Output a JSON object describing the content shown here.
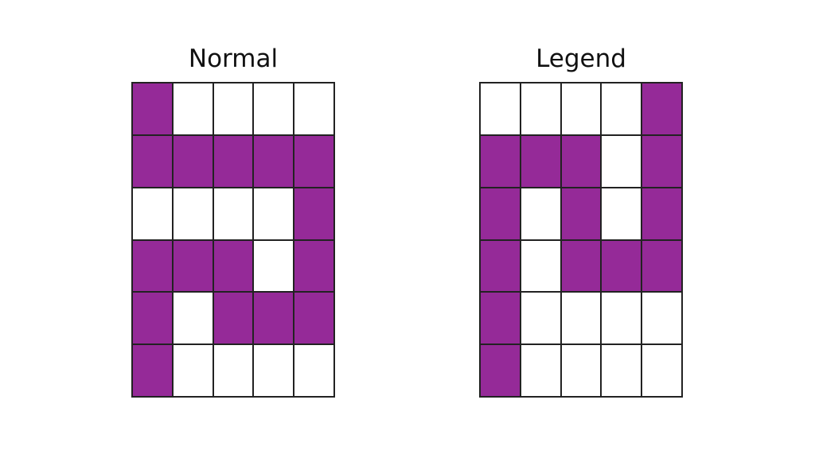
{
  "fill_color": "#952A98",
  "panels": [
    {
      "title": "Normal",
      "cells": [
        [
          1,
          0,
          0,
          0,
          0
        ],
        [
          1,
          1,
          1,
          1,
          1
        ],
        [
          0,
          0,
          0,
          0,
          1
        ],
        [
          1,
          1,
          1,
          0,
          1
        ],
        [
          1,
          0,
          1,
          1,
          1
        ],
        [
          1,
          0,
          0,
          0,
          0
        ]
      ]
    },
    {
      "title": "Legend",
      "cells": [
        [
          0,
          0,
          0,
          0,
          1
        ],
        [
          1,
          1,
          1,
          0,
          1
        ],
        [
          1,
          0,
          1,
          0,
          1
        ],
        [
          1,
          0,
          1,
          1,
          1
        ],
        [
          1,
          0,
          0,
          0,
          0
        ],
        [
          1,
          0,
          0,
          0,
          0
        ]
      ]
    }
  ]
}
